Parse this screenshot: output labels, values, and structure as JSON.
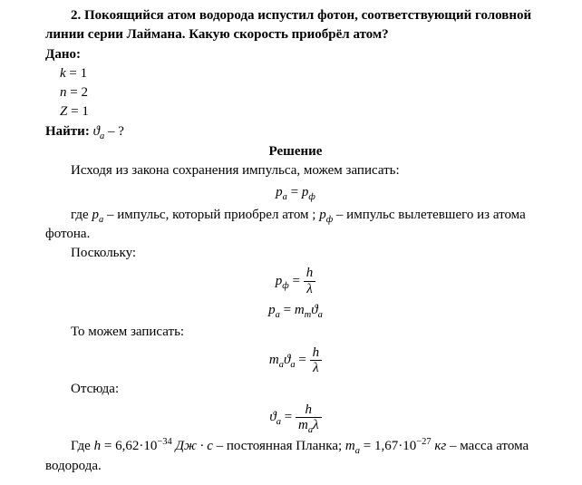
{
  "title_l1": "2. Покоящийся атом водорода испустил фотон, соответствующий головной",
  "title_l2": "линии серии Лаймана. Какую скорость приобрёл атом?",
  "given_label": "Дано:",
  "given_k_lhs": "k",
  "given_k_rhs": "1",
  "given_n_lhs": "n",
  "given_n_rhs": "2",
  "given_Z_lhs": "Z",
  "given_Z_rhs": "1",
  "find_label": "Найти:",
  "find_sym": "ϑ",
  "find_sub": "а",
  "find_q": "– ?",
  "sol_heading": "Решение",
  "p1": "Исходя из закона сохранения импульса, можем записать:",
  "eq1_lhs_p": "p",
  "eq1_lhs_sub": "а",
  "eq1_rhs_p": "p",
  "eq1_rhs_sub": "ф",
  "p2_pre": "где ",
  "p2_pa_p": "p",
  "p2_pa_sub": "а",
  "p2_mid": " – импульс, который приобрел атом ; ",
  "p2_pf_p": "p",
  "p2_pf_sub": "ф",
  "p2_post": " – импульс вылетевшего из атома",
  "p2_cont": "фотона.",
  "p3": "Поскольку:",
  "eq2_lhs_p": "p",
  "eq2_lhs_sub": "ф",
  "eq2_num": "h",
  "eq2_den": "λ",
  "eq3_lhs_p": "p",
  "eq3_lhs_sub": "а",
  "eq3_m": "m",
  "eq3_m_sub": "m",
  "eq3_th": "ϑ",
  "eq3_th_sub": "а",
  "p4": "То можем записать:",
  "eq4_m": "m",
  "eq4_m_sub": "а",
  "eq4_th": "ϑ",
  "eq4_th_sub": "а",
  "eq4_num": "h",
  "eq4_den": "λ",
  "p5": "Отсюда:",
  "eq5_th": "ϑ",
  "eq5_th_sub": "а",
  "eq5_num": "h",
  "eq5_den_m": "m",
  "eq5_den_msub": "а",
  "eq5_den_lam": "λ",
  "p6_pre": "Где ",
  "p6_h": "h",
  "p6_hval_a": "6,62",
  "p6_hval_b": "10",
  "p6_hval_exp": "−34",
  "p6_hunit": " Дж · с",
  "p6_htxt": " – постоянная Планка; ",
  "p6_m": "m",
  "p6_m_sub": "а",
  "p6_mval_a": "1,67",
  "p6_mval_b": "10",
  "p6_mval_exp": "−27",
  "p6_munit": " кг",
  "p6_mtxt": " – масса атома",
  "p6_cont": "водорода.",
  "eq_sign": " = ",
  "dot": "·"
}
